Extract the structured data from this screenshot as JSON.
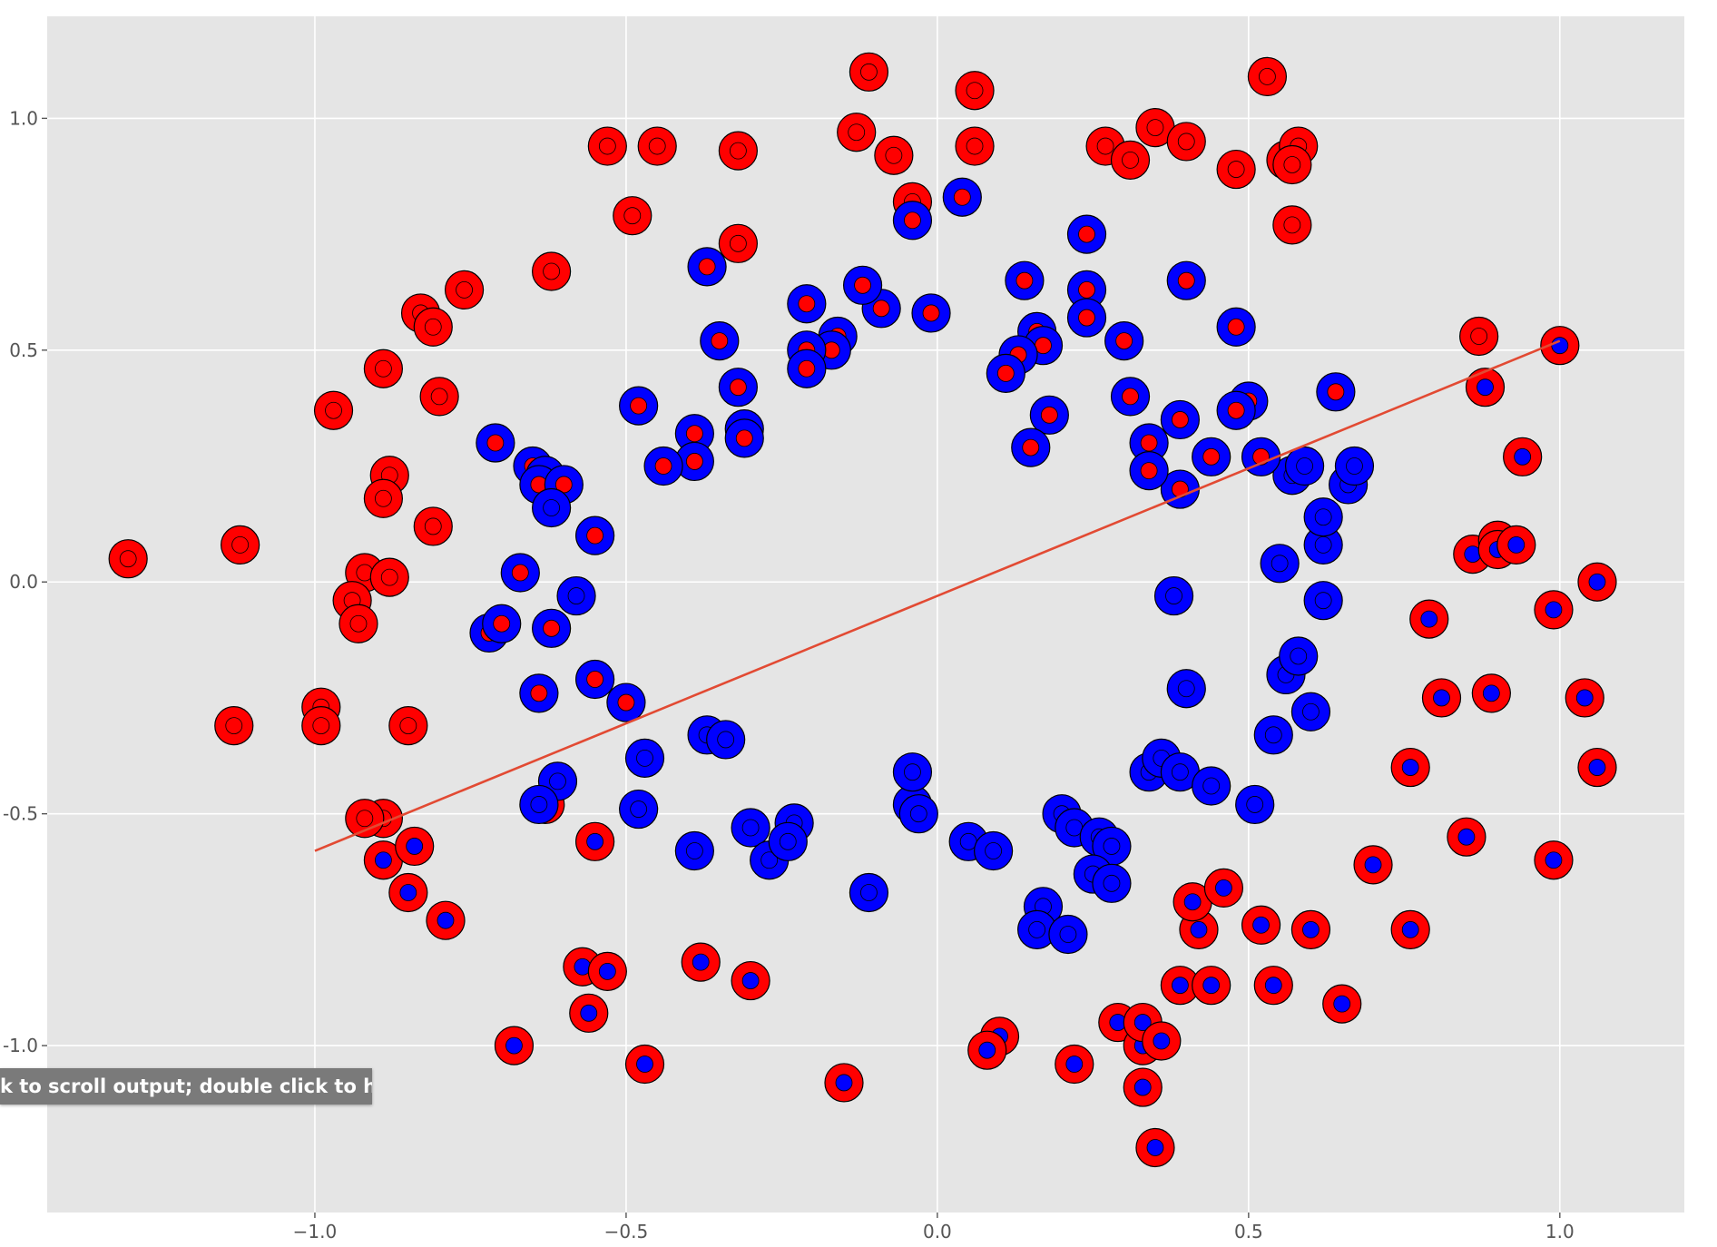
{
  "tooltip": {
    "text": "k to scroll output; double click to hide"
  },
  "colors": {
    "background": "#e5e5e5",
    "grid": "#ffffff",
    "class_red": "#ff0000",
    "class_blue": "#0000ff",
    "marker_edge": "#000000",
    "decision_line": "#e24a33"
  },
  "chart_data": {
    "type": "scatter",
    "title": "",
    "xlabel": "",
    "ylabel": "",
    "xlim": [
      -1.43,
      1.2
    ],
    "ylim": [
      -1.36,
      1.22
    ],
    "grid": true,
    "legend": "none",
    "x_ticks": [
      {
        "value": -1.0,
        "label": "−1.0"
      },
      {
        "value": -0.5,
        "label": "−0.5"
      },
      {
        "value": 0.0,
        "label": "0.0"
      },
      {
        "value": 0.5,
        "label": "0.5"
      },
      {
        "value": 1.0,
        "label": "1.0"
      }
    ],
    "y_ticks": [
      {
        "value": 1.0,
        "label": "1.0"
      },
      {
        "value": 0.5,
        "label": "0.5"
      },
      {
        "value": 0.0,
        "label": "0.0"
      },
      {
        "value": -0.5,
        "label": "-0.5"
      },
      {
        "value": -1.0,
        "label": "-1.0"
      }
    ],
    "encoding": "outer ring = true class, inner dot = predicted class; r = red, b = blue",
    "decision_line": {
      "x": [
        -1.0,
        1.0
      ],
      "y": [
        -0.58,
        0.52
      ]
    },
    "points": [
      [
        -1.3,
        0.05,
        "r",
        "r"
      ],
      [
        -1.12,
        0.08,
        "r",
        "r"
      ],
      [
        -0.97,
        0.37,
        "r",
        "r"
      ],
      [
        -0.89,
        0.46,
        "r",
        "r"
      ],
      [
        -0.83,
        0.58,
        "r",
        "r"
      ],
      [
        -0.81,
        0.55,
        "r",
        "r"
      ],
      [
        -0.76,
        0.63,
        "r",
        "r"
      ],
      [
        -0.8,
        0.4,
        "r",
        "r"
      ],
      [
        -0.88,
        0.23,
        "r",
        "r"
      ],
      [
        -0.89,
        0.18,
        "r",
        "r"
      ],
      [
        -0.81,
        0.12,
        "r",
        "r"
      ],
      [
        -0.92,
        0.02,
        "r",
        "r"
      ],
      [
        -0.88,
        0.01,
        "r",
        "r"
      ],
      [
        -0.94,
        -0.04,
        "r",
        "r"
      ],
      [
        -0.93,
        -0.09,
        "r",
        "r"
      ],
      [
        -0.99,
        -0.27,
        "r",
        "r"
      ],
      [
        -0.99,
        -0.31,
        "r",
        "r"
      ],
      [
        -1.13,
        -0.31,
        "r",
        "r"
      ],
      [
        -0.85,
        -0.31,
        "r",
        "r"
      ],
      [
        -0.62,
        0.67,
        "r",
        "r"
      ],
      [
        -0.53,
        0.94,
        "r",
        "r"
      ],
      [
        -0.45,
        0.94,
        "r",
        "r"
      ],
      [
        -0.32,
        0.93,
        "r",
        "r"
      ],
      [
        -0.49,
        0.79,
        "r",
        "r"
      ],
      [
        -0.32,
        0.73,
        "r",
        "r"
      ],
      [
        -0.11,
        1.1,
        "r",
        "r"
      ],
      [
        -0.13,
        0.97,
        "r",
        "r"
      ],
      [
        -0.07,
        0.92,
        "r",
        "r"
      ],
      [
        -0.04,
        0.82,
        "r",
        "r"
      ],
      [
        0.06,
        1.06,
        "r",
        "r"
      ],
      [
        0.06,
        0.94,
        "r",
        "r"
      ],
      [
        0.27,
        0.94,
        "r",
        "r"
      ],
      [
        0.31,
        0.91,
        "r",
        "r"
      ],
      [
        0.35,
        0.98,
        "r",
        "r"
      ],
      [
        0.4,
        0.95,
        "r",
        "r"
      ],
      [
        0.48,
        0.89,
        "r",
        "r"
      ],
      [
        0.53,
        1.09,
        "r",
        "r"
      ],
      [
        0.56,
        0.91,
        "r",
        "r"
      ],
      [
        0.58,
        0.94,
        "r",
        "r"
      ],
      [
        0.57,
        0.9,
        "r",
        "r"
      ],
      [
        0.57,
        0.77,
        "r",
        "r"
      ],
      [
        -0.89,
        -0.51,
        "r",
        "r"
      ],
      [
        -0.92,
        -0.51,
        "r",
        "r"
      ],
      [
        -0.63,
        -0.48,
        "r",
        "r"
      ],
      [
        -0.55,
        -0.56,
        "r",
        "b"
      ],
      [
        -0.89,
        -0.6,
        "r",
        "b"
      ],
      [
        -0.84,
        -0.57,
        "r",
        "b"
      ],
      [
        -0.85,
        -0.67,
        "r",
        "b"
      ],
      [
        -0.79,
        -0.73,
        "r",
        "b"
      ],
      [
        -0.57,
        -0.83,
        "r",
        "b"
      ],
      [
        -0.53,
        -0.84,
        "r",
        "b"
      ],
      [
        -0.56,
        -0.93,
        "r",
        "b"
      ],
      [
        -0.38,
        -0.82,
        "r",
        "b"
      ],
      [
        -0.3,
        -0.86,
        "r",
        "b"
      ],
      [
        -0.68,
        -1.0,
        "r",
        "b"
      ],
      [
        -0.47,
        -1.04,
        "r",
        "b"
      ],
      [
        -0.15,
        -1.08,
        "r",
        "b"
      ],
      [
        0.1,
        -0.98,
        "r",
        "b"
      ],
      [
        0.08,
        -1.01,
        "r",
        "b"
      ],
      [
        0.22,
        -1.04,
        "r",
        "b"
      ],
      [
        0.29,
        -0.95,
        "r",
        "b"
      ],
      [
        0.33,
        -1.0,
        "r",
        "b"
      ],
      [
        0.33,
        -0.95,
        "r",
        "b"
      ],
      [
        0.36,
        -0.99,
        "r",
        "b"
      ],
      [
        0.33,
        -1.09,
        "r",
        "b"
      ],
      [
        0.35,
        -1.22,
        "r",
        "b"
      ],
      [
        0.39,
        -0.87,
        "r",
        "b"
      ],
      [
        0.44,
        -0.87,
        "r",
        "b"
      ],
      [
        0.42,
        -0.75,
        "r",
        "b"
      ],
      [
        0.41,
        -0.69,
        "r",
        "b"
      ],
      [
        0.46,
        -0.66,
        "r",
        "b"
      ],
      [
        0.52,
        -0.74,
        "r",
        "b"
      ],
      [
        0.54,
        -0.87,
        "r",
        "b"
      ],
      [
        0.6,
        -0.75,
        "r",
        "b"
      ],
      [
        0.65,
        -0.91,
        "r",
        "b"
      ],
      [
        0.7,
        -0.61,
        "r",
        "b"
      ],
      [
        0.76,
        -0.4,
        "r",
        "b"
      ],
      [
        0.76,
        -0.75,
        "r",
        "b"
      ],
      [
        0.85,
        -0.55,
        "r",
        "b"
      ],
      [
        0.81,
        -0.25,
        "r",
        "b"
      ],
      [
        0.79,
        -0.08,
        "r",
        "b"
      ],
      [
        0.89,
        -0.24,
        "r",
        "b"
      ],
      [
        0.86,
        0.06,
        "r",
        "b"
      ],
      [
        0.9,
        0.09,
        "r",
        "b"
      ],
      [
        0.9,
        0.07,
        "r",
        "b"
      ],
      [
        0.93,
        0.08,
        "r",
        "b"
      ],
      [
        0.87,
        0.53,
        "r",
        "r"
      ],
      [
        0.88,
        0.42,
        "r",
        "b"
      ],
      [
        0.94,
        0.27,
        "r",
        "b"
      ],
      [
        0.99,
        -0.06,
        "r",
        "b"
      ],
      [
        1.06,
        0.0,
        "r",
        "b"
      ],
      [
        1.04,
        -0.25,
        "r",
        "b"
      ],
      [
        1.06,
        -0.4,
        "r",
        "b"
      ],
      [
        0.99,
        -0.6,
        "r",
        "b"
      ],
      [
        1.0,
        0.51,
        "r",
        "b"
      ],
      [
        -0.71,
        0.3,
        "b",
        "r"
      ],
      [
        -0.65,
        0.25,
        "b",
        "r"
      ],
      [
        -0.63,
        0.23,
        "b",
        "r"
      ],
      [
        -0.64,
        0.21,
        "b",
        "r"
      ],
      [
        -0.6,
        0.21,
        "b",
        "r"
      ],
      [
        -0.62,
        0.16,
        "b",
        "b"
      ],
      [
        -0.55,
        0.1,
        "b",
        "r"
      ],
      [
        -0.67,
        0.02,
        "b",
        "r"
      ],
      [
        -0.72,
        -0.11,
        "b",
        "r"
      ],
      [
        -0.7,
        -0.09,
        "b",
        "r"
      ],
      [
        -0.62,
        -0.1,
        "b",
        "r"
      ],
      [
        -0.58,
        -0.03,
        "b",
        "b"
      ],
      [
        -0.64,
        -0.24,
        "b",
        "r"
      ],
      [
        -0.55,
        -0.21,
        "b",
        "r"
      ],
      [
        -0.5,
        -0.26,
        "b",
        "r"
      ],
      [
        -0.47,
        -0.38,
        "b",
        "b"
      ],
      [
        -0.61,
        -0.43,
        "b",
        "b"
      ],
      [
        -0.64,
        -0.48,
        "b",
        "b"
      ],
      [
        -0.48,
        -0.49,
        "b",
        "b"
      ],
      [
        -0.39,
        -0.58,
        "b",
        "b"
      ],
      [
        -0.37,
        -0.33,
        "b",
        "b"
      ],
      [
        -0.34,
        -0.34,
        "b",
        "b"
      ],
      [
        -0.3,
        -0.53,
        "b",
        "b"
      ],
      [
        -0.27,
        -0.6,
        "b",
        "b"
      ],
      [
        -0.23,
        -0.52,
        "b",
        "b"
      ],
      [
        -0.24,
        -0.56,
        "b",
        "b"
      ],
      [
        -0.11,
        -0.67,
        "b",
        "b"
      ],
      [
        -0.04,
        -0.48,
        "b",
        "b"
      ],
      [
        -0.04,
        -0.41,
        "b",
        "b"
      ],
      [
        -0.03,
        -0.5,
        "b",
        "b"
      ],
      [
        0.05,
        -0.56,
        "b",
        "b"
      ],
      [
        0.09,
        -0.58,
        "b",
        "b"
      ],
      [
        0.2,
        -0.5,
        "b",
        "b"
      ],
      [
        0.22,
        -0.53,
        "b",
        "b"
      ],
      [
        0.26,
        -0.55,
        "b",
        "b"
      ],
      [
        0.28,
        -0.57,
        "b",
        "b"
      ],
      [
        0.17,
        -0.7,
        "b",
        "b"
      ],
      [
        0.16,
        -0.75,
        "b",
        "b"
      ],
      [
        0.21,
        -0.76,
        "b",
        "b"
      ],
      [
        0.25,
        -0.63,
        "b",
        "b"
      ],
      [
        0.28,
        -0.65,
        "b",
        "b"
      ],
      [
        0.34,
        -0.41,
        "b",
        "b"
      ],
      [
        0.36,
        -0.38,
        "b",
        "b"
      ],
      [
        0.39,
        -0.41,
        "b",
        "b"
      ],
      [
        0.44,
        -0.44,
        "b",
        "b"
      ],
      [
        0.51,
        -0.48,
        "b",
        "b"
      ],
      [
        0.54,
        -0.33,
        "b",
        "b"
      ],
      [
        0.56,
        -0.2,
        "b",
        "b"
      ],
      [
        0.58,
        -0.16,
        "b",
        "b"
      ],
      [
        0.6,
        -0.28,
        "b",
        "b"
      ],
      [
        0.4,
        -0.23,
        "b",
        "b"
      ],
      [
        0.38,
        -0.03,
        "b",
        "b"
      ],
      [
        0.62,
        -0.04,
        "b",
        "b"
      ],
      [
        0.62,
        0.08,
        "b",
        "b"
      ],
      [
        0.62,
        0.14,
        "b",
        "b"
      ],
      [
        0.55,
        0.04,
        "b",
        "b"
      ],
      [
        0.57,
        0.23,
        "b",
        "b"
      ],
      [
        0.59,
        0.25,
        "b",
        "b"
      ],
      [
        0.66,
        0.21,
        "b",
        "b"
      ],
      [
        0.67,
        0.25,
        "b",
        "b"
      ],
      [
        0.64,
        0.41,
        "b",
        "r"
      ],
      [
        0.52,
        0.27,
        "b",
        "r"
      ],
      [
        0.5,
        0.39,
        "b",
        "r"
      ],
      [
        0.48,
        0.37,
        "b",
        "r"
      ],
      [
        0.48,
        0.55,
        "b",
        "r"
      ],
      [
        0.4,
        0.65,
        "b",
        "r"
      ],
      [
        0.44,
        0.27,
        "b",
        "r"
      ],
      [
        0.39,
        0.35,
        "b",
        "r"
      ],
      [
        0.39,
        0.2,
        "b",
        "r"
      ],
      [
        0.34,
        0.3,
        "b",
        "r"
      ],
      [
        0.34,
        0.24,
        "b",
        "r"
      ],
      [
        0.31,
        0.4,
        "b",
        "r"
      ],
      [
        0.3,
        0.52,
        "b",
        "r"
      ],
      [
        0.24,
        0.63,
        "b",
        "r"
      ],
      [
        0.24,
        0.57,
        "b",
        "r"
      ],
      [
        0.24,
        0.75,
        "b",
        "r"
      ],
      [
        0.14,
        0.65,
        "b",
        "r"
      ],
      [
        0.16,
        0.54,
        "b",
        "r"
      ],
      [
        0.17,
        0.51,
        "b",
        "r"
      ],
      [
        0.13,
        0.49,
        "b",
        "r"
      ],
      [
        0.11,
        0.45,
        "b",
        "r"
      ],
      [
        0.18,
        0.36,
        "b",
        "r"
      ],
      [
        0.15,
        0.29,
        "b",
        "r"
      ],
      [
        0.04,
        0.83,
        "b",
        "r"
      ],
      [
        -0.01,
        0.58,
        "b",
        "r"
      ],
      [
        -0.04,
        0.78,
        "b",
        "r"
      ],
      [
        -0.09,
        0.59,
        "b",
        "r"
      ],
      [
        -0.12,
        0.64,
        "b",
        "r"
      ],
      [
        -0.16,
        0.53,
        "b",
        "r"
      ],
      [
        -0.17,
        0.5,
        "b",
        "r"
      ],
      [
        -0.21,
        0.5,
        "b",
        "r"
      ],
      [
        -0.21,
        0.6,
        "b",
        "r"
      ],
      [
        -0.21,
        0.46,
        "b",
        "r"
      ],
      [
        -0.32,
        0.42,
        "b",
        "r"
      ],
      [
        -0.31,
        0.33,
        "b",
        "r"
      ],
      [
        -0.31,
        0.31,
        "b",
        "r"
      ],
      [
        -0.35,
        0.52,
        "b",
        "r"
      ],
      [
        -0.37,
        0.68,
        "b",
        "r"
      ],
      [
        -0.39,
        0.32,
        "b",
        "r"
      ],
      [
        -0.39,
        0.26,
        "b",
        "r"
      ],
      [
        -0.44,
        0.25,
        "b",
        "r"
      ],
      [
        -0.48,
        0.38,
        "b",
        "r"
      ]
    ]
  }
}
